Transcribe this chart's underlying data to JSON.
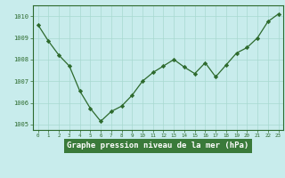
{
  "x": [
    0,
    1,
    2,
    3,
    4,
    5,
    6,
    7,
    8,
    9,
    10,
    11,
    12,
    13,
    14,
    15,
    16,
    17,
    18,
    19,
    20,
    21,
    22,
    23
  ],
  "y": [
    1009.6,
    1008.85,
    1008.2,
    1007.7,
    1006.55,
    1005.75,
    1005.15,
    1005.6,
    1005.85,
    1006.35,
    1007.0,
    1007.4,
    1007.7,
    1008.0,
    1007.65,
    1007.35,
    1007.85,
    1007.2,
    1007.75,
    1008.3,
    1008.55,
    1009.0,
    1009.75,
    1010.1
  ],
  "line_color": "#2d6a2d",
  "marker": "D",
  "bg_color": "#c8ecec",
  "grid_color": "#a8d8d0",
  "xlabel": "Graphe pression niveau de la mer (hPa)",
  "xlabel_color": "#1a4a1a",
  "ylim": [
    1004.75,
    1010.5
  ],
  "yticks": [
    1005,
    1006,
    1007,
    1008,
    1009,
    1010
  ],
  "xticks": [
    0,
    1,
    2,
    3,
    4,
    5,
    6,
    7,
    8,
    9,
    10,
    11,
    12,
    13,
    14,
    15,
    16,
    17,
    18,
    19,
    20,
    21,
    22,
    23
  ],
  "tick_color": "#2d6a2d",
  "spine_color": "#2d6a2d",
  "label_bg": "#3a7a3a"
}
